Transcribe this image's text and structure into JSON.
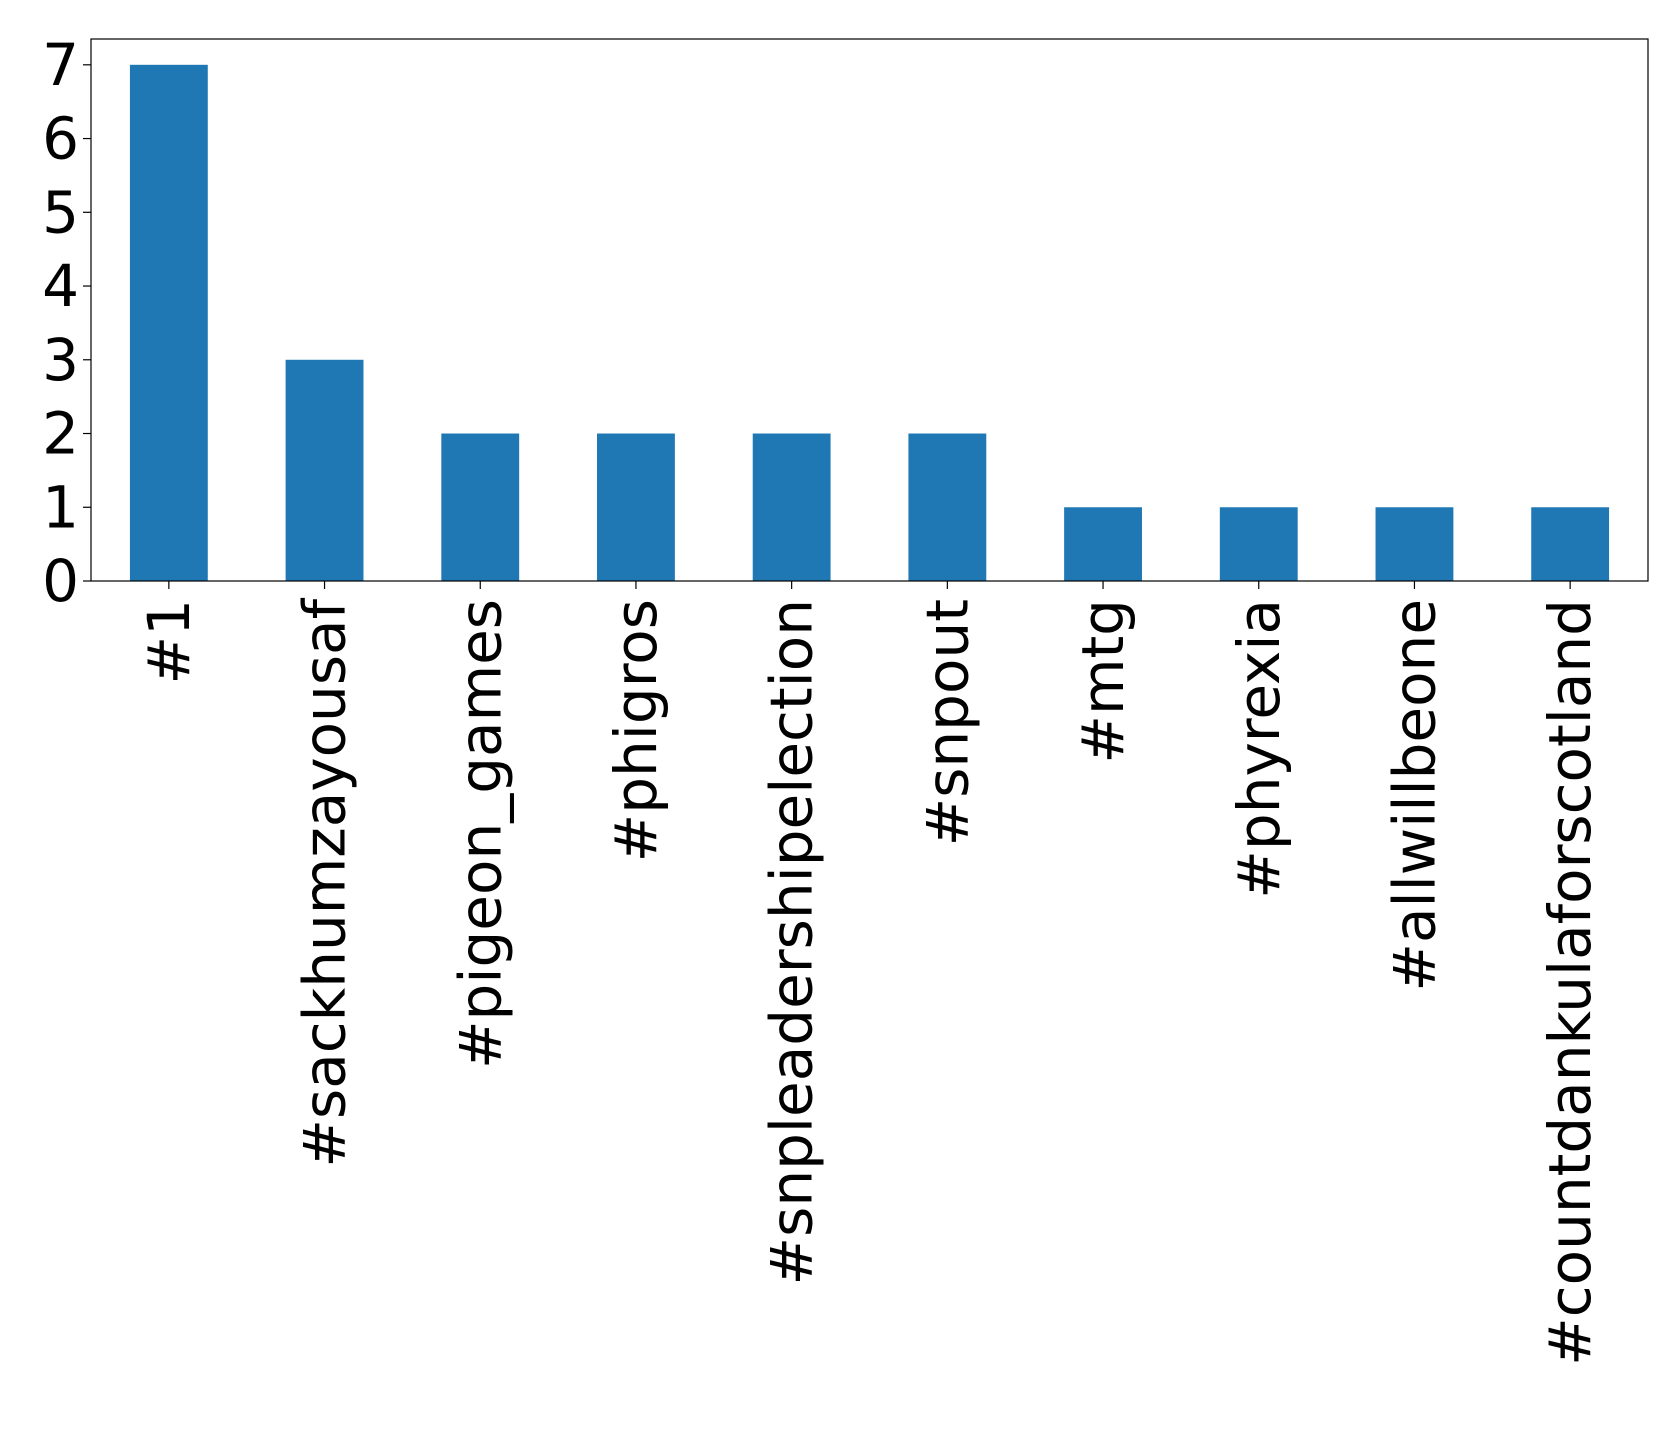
{
  "chart_data": {
    "type": "bar",
    "title": "",
    "xlabel": "",
    "ylabel": "",
    "categories": [
      "#1",
      "#sackhumzayousaf",
      "#pigeon_games",
      "#phigros",
      "#snpleadershipelection",
      "#snpout",
      "#mtg",
      "#phyrexia",
      "#allwillbeone",
      "#countdankulaforscotland"
    ],
    "values": [
      7,
      3,
      2,
      2,
      2,
      2,
      1,
      1,
      1,
      1
    ],
    "ylim": [
      0,
      7.35
    ],
    "yticks": [
      0,
      1,
      2,
      3,
      4,
      5,
      6,
      7
    ],
    "bar_color": "#1f77b4",
    "grid": false,
    "legend": "none"
  }
}
